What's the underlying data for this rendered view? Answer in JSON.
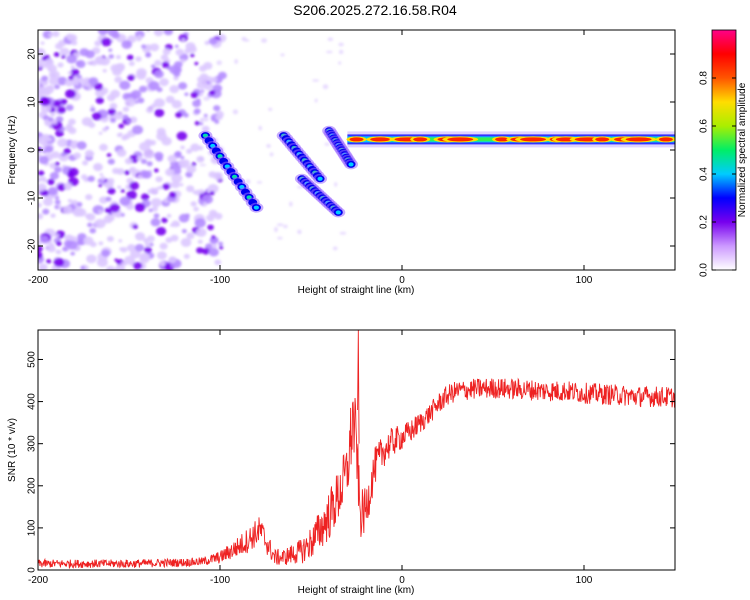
{
  "title": "S206.2025.272.16.58.R04",
  "chart_data": [
    {
      "type": "heatmap",
      "name": "spectrogram",
      "xlabel": "Height of straight line (km)",
      "ylabel": "Frequency (Hz)",
      "xlim": [
        -200,
        150
      ],
      "ylim": [
        -25,
        25
      ],
      "xticks": [
        "-200",
        "-100",
        "0",
        "100"
      ],
      "xtick_values": [
        -200,
        -100,
        0,
        100
      ],
      "yticks": [
        "-20",
        "-10",
        "0",
        "10",
        "20"
      ],
      "ytick_values": [
        -20,
        -10,
        0,
        10,
        20
      ],
      "colorbar": {
        "label": "Normalized spectral amplitude",
        "range": [
          0,
          1
        ],
        "ticks": [
          "0.0",
          "0.2",
          "0.4",
          "0.6",
          "0.8"
        ],
        "tick_values": [
          0.0,
          0.2,
          0.4,
          0.6,
          0.8
        ],
        "colormap": [
          "#ffffff",
          "#cc99ff",
          "#7700ee",
          "#0000ff",
          "#00ccff",
          "#00ee66",
          "#aaee00",
          "#ffdd00",
          "#ff5500",
          "#ff0000",
          "#ff0088"
        ]
      },
      "features": {
        "noise_region_x": [
          -200,
          -110
        ],
        "descending_tracks": [
          {
            "x": [
              -108,
              -80
            ],
            "y": [
              3,
              -12
            ]
          },
          {
            "x": [
              -65,
              -45
            ],
            "y": [
              3,
              -6
            ]
          },
          {
            "x": [
              -55,
              -35
            ],
            "y": [
              -6,
              -13
            ]
          },
          {
            "x": [
              -40,
              -28
            ],
            "y": [
              4,
              -3
            ]
          }
        ],
        "carrier_line": {
          "x": [
            -30,
            150
          ],
          "y_approx": 2
        }
      }
    },
    {
      "type": "line",
      "name": "snr",
      "xlabel": "Height of straight line (km)",
      "ylabel": "SNR (10 * v/v)",
      "xlim": [
        -200,
        150
      ],
      "ylim": [
        0,
        570
      ],
      "xticks": [
        "-200",
        "-100",
        "0",
        "100"
      ],
      "xtick_values": [
        -200,
        -100,
        0,
        100
      ],
      "yticks": [
        "0",
        "100",
        "200",
        "300",
        "400",
        "500"
      ],
      "ytick_values": [
        0,
        100,
        200,
        300,
        400,
        500
      ],
      "color": "#ee2222",
      "series": [
        {
          "name": "SNR",
          "x": [
            -200,
            -150,
            -120,
            -110,
            -100,
            -90,
            -85,
            -78,
            -75,
            -70,
            -65,
            -60,
            -55,
            -50,
            -45,
            -40,
            -35,
            -30,
            -27,
            -25,
            -23,
            -20,
            -15,
            -10,
            -5,
            0,
            5,
            10,
            15,
            20,
            25,
            30,
            40,
            50,
            60,
            70,
            80,
            90,
            100,
            110,
            120,
            130,
            140,
            150
          ],
          "y": [
            15,
            15,
            18,
            20,
            30,
            55,
            70,
            95,
            70,
            30,
            30,
            38,
            45,
            65,
            95,
            130,
            175,
            235,
            360,
            300,
            130,
            140,
            245,
            285,
            305,
            315,
            330,
            350,
            370,
            395,
            415,
            425,
            430,
            432,
            430,
            428,
            425,
            425,
            420,
            418,
            415,
            412,
            412,
            410
          ],
          "noise_amplitude": [
            10,
            10,
            10,
            10,
            15,
            25,
            30,
            35,
            30,
            20,
            20,
            25,
            30,
            40,
            50,
            60,
            65,
            70,
            100,
            80,
            60,
            55,
            45,
            40,
            35,
            30,
            28,
            26,
            25,
            25,
            25,
            25,
            25,
            25,
            25,
            25,
            25,
            25,
            25,
            25,
            25,
            25,
            25,
            25
          ]
        }
      ],
      "peak": {
        "x": -24,
        "y": 570
      }
    }
  ]
}
